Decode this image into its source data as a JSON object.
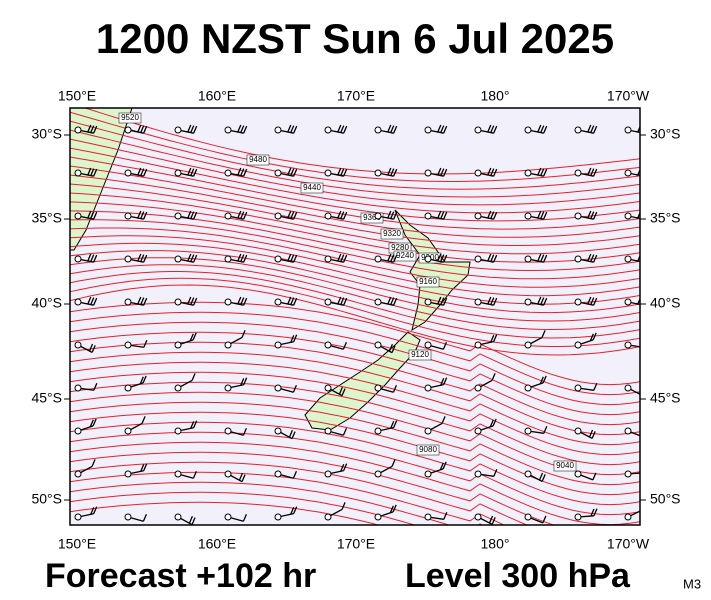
{
  "title": "1200 NZST Sun 6 Jul 2025",
  "longitude_labels": [
    "150°E",
    "160°E",
    "170°E",
    "180°",
    "170°W"
  ],
  "latitude_labels": [
    "30°S",
    "35°S",
    "40°S",
    "45°S",
    "50°S"
  ],
  "contour_labels": [
    "9520",
    "9480",
    "9440",
    "9360",
    "9320",
    "9280",
    "9240",
    "9200",
    "9160",
    "9120",
    "9080",
    "9040"
  ],
  "forecast": "Forecast +102 hr",
  "level": "Level 300 hPa",
  "model": "M3"
}
